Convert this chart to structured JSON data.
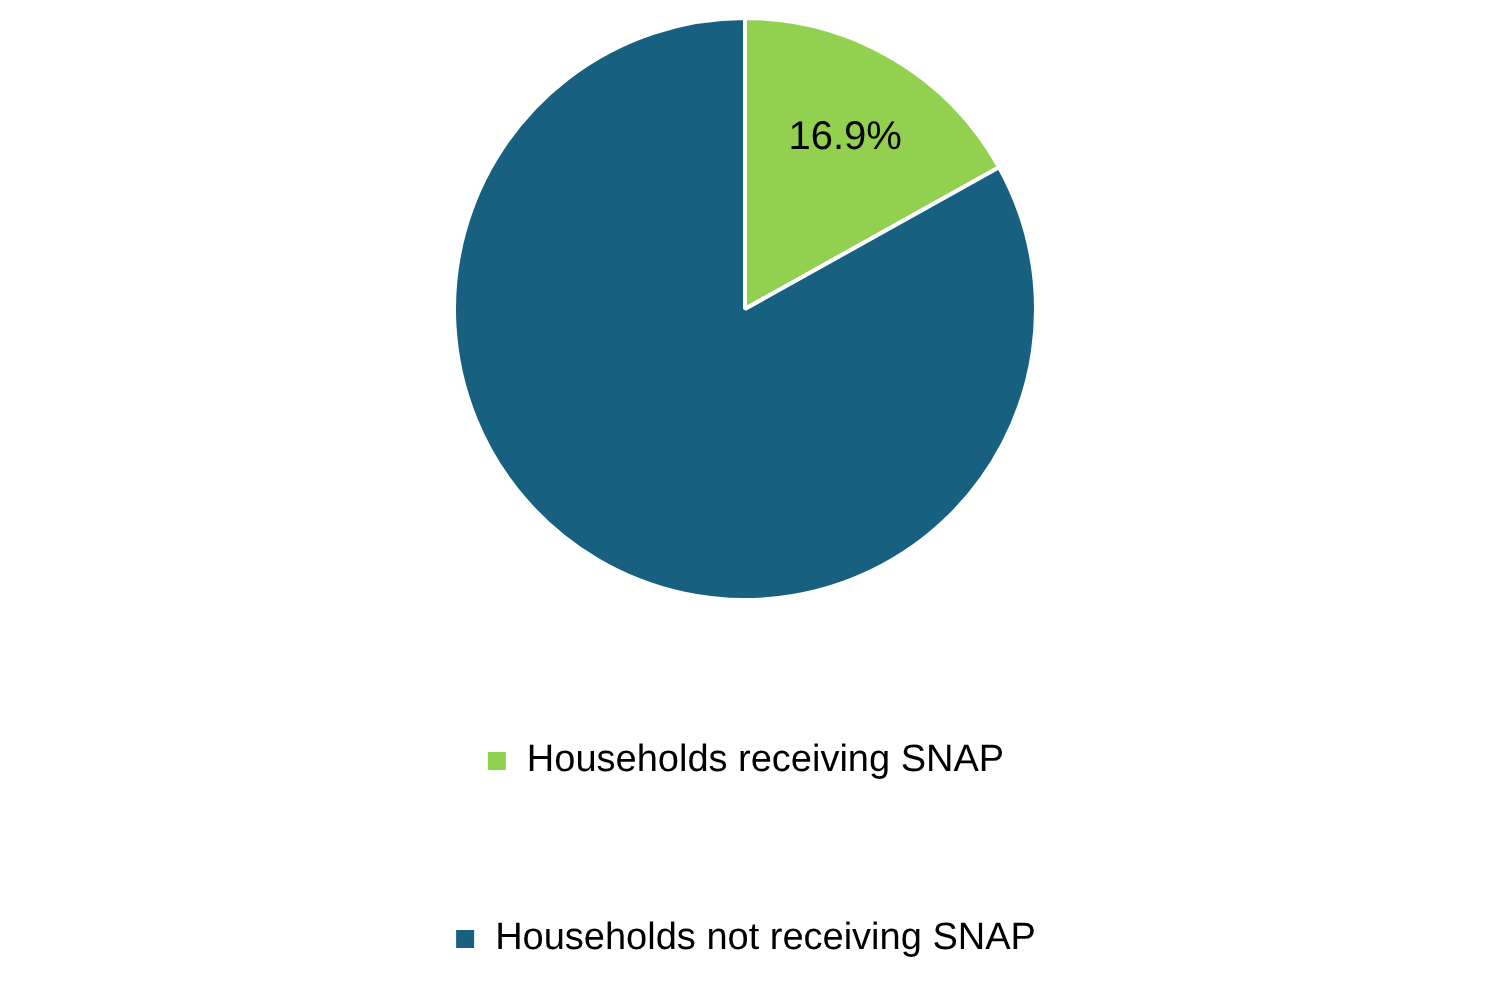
{
  "chart_data": {
    "type": "pie",
    "categories": [
      "Households receiving SNAP",
      "Households not receiving SNAP"
    ],
    "values": [
      16.9,
      83.1
    ],
    "colors": [
      "#92d050",
      "#17607f"
    ],
    "value_labels": [
      "16.9%",
      null
    ],
    "legend": "bottom"
  }
}
